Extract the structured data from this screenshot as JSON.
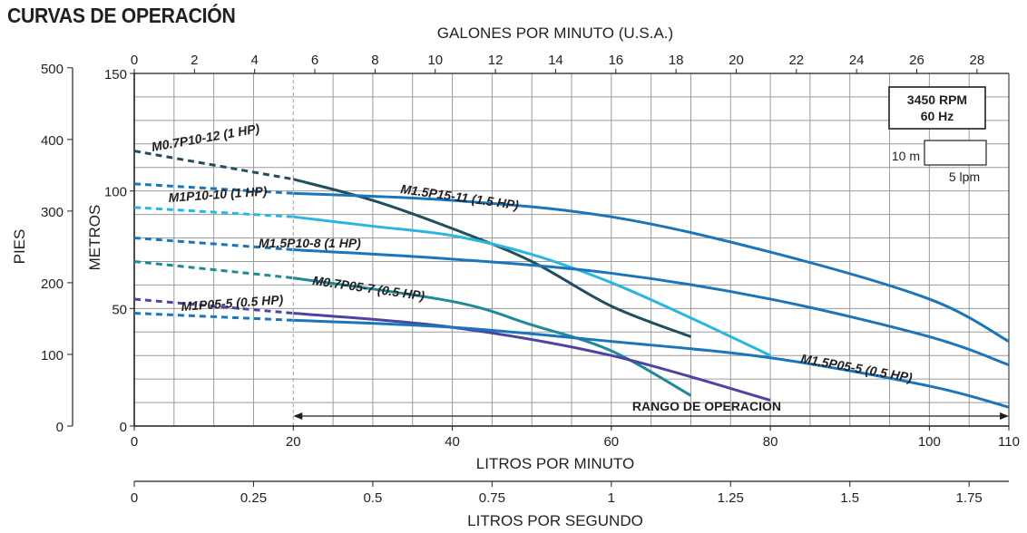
{
  "page": {
    "title": "CURVAS DE OPERACIÓN"
  },
  "colors": {
    "grid": "#9a9a9a",
    "axis": "#231f20",
    "M0.7P10-12": "#1f4e5f",
    "M1P10-10": "#29b6e0",
    "M1.5P15-11": "#1b75bb",
    "M1.5P10-8": "#1b75bb",
    "M0.7P05-7": "#1c8a99",
    "M1P05-5": "#4a45a3",
    "M1.5P05-5": "#1b75bb"
  },
  "chart_data": {
    "type": "line",
    "title": "CURVAS DE OPERACIÓN",
    "grid": true,
    "x": {
      "label": "LITROS POR MINUTO",
      "range": [
        0,
        110
      ],
      "ticks": [
        0,
        20,
        40,
        60,
        80,
        100,
        110
      ]
    },
    "y": {
      "label": "METROS",
      "range": [
        0,
        150
      ],
      "ticks": [
        0,
        50,
        100,
        150
      ],
      "tick_labels": [
        "0",
        "50",
        "100",
        "150"
      ]
    },
    "x_secondary_top": {
      "label": "GALONES POR MINUTO (U.S.A.)",
      "ticks": [
        0,
        2,
        4,
        6,
        8,
        10,
        12,
        14,
        16,
        18,
        20,
        22,
        24,
        26,
        28
      ]
    },
    "x_secondary_bottom": {
      "label": "LITROS POR SEGUNDO",
      "ticks": [
        0,
        0.25,
        0.5,
        0.75,
        1,
        1.25,
        1.5,
        1.75
      ],
      "tick_labels": [
        "0",
        "0.25",
        "0.5",
        "0.75",
        "1",
        "1.25",
        "1.5",
        "1.75"
      ]
    },
    "y_secondary_left": {
      "label": "PIES",
      "ticks": [
        0,
        100,
        200,
        300,
        400,
        500
      ],
      "tick_labels": [
        "0",
        "100",
        "200",
        "300",
        "400",
        "500"
      ]
    },
    "info_box": {
      "line1": "3450 RPM",
      "line2": "60 Hz"
    },
    "scale_legend": {
      "height_label": "10 m",
      "width_label": "5 lpm"
    },
    "operating_range": {
      "label": "RANGO DE OPERACION",
      "from": 20,
      "to": 110
    },
    "series": [
      {
        "name": "M0.7P10-12 (1 HP)",
        "key": "M0.7P10-12",
        "dashed": [
          [
            0,
            117
          ],
          [
            20,
            105
          ]
        ],
        "points": [
          [
            20,
            105
          ],
          [
            30,
            96
          ],
          [
            40,
            84
          ],
          [
            50,
            70
          ],
          [
            60,
            51
          ],
          [
            70,
            38
          ]
        ]
      },
      {
        "name": "M1P10-10 (1 HP)",
        "key": "M1P10-10",
        "dashed": [
          [
            0,
            93
          ],
          [
            20,
            89
          ]
        ],
        "points": [
          [
            20,
            89
          ],
          [
            30,
            85
          ],
          [
            40,
            81
          ],
          [
            50,
            73
          ],
          [
            60,
            61
          ],
          [
            70,
            46
          ],
          [
            80,
            30
          ]
        ]
      },
      {
        "name": "M1.5P15-11 (1.5 HP)",
        "key": "M1.5P15-11",
        "dashed": [
          [
            0,
            103
          ],
          [
            20,
            99
          ]
        ],
        "points": [
          [
            20,
            99
          ],
          [
            40,
            96
          ],
          [
            60,
            89
          ],
          [
            80,
            74
          ],
          [
            100,
            54
          ],
          [
            110,
            36
          ]
        ]
      },
      {
        "name": "M1.5P10-8 (1 HP)",
        "key": "M1.5P10-8",
        "dashed": [
          [
            0,
            80
          ],
          [
            20,
            75
          ]
        ],
        "points": [
          [
            20,
            75
          ],
          [
            40,
            71
          ],
          [
            60,
            65
          ],
          [
            80,
            54
          ],
          [
            100,
            38
          ],
          [
            110,
            26
          ]
        ]
      },
      {
        "name": "M0.7P05-7 (0.5 HP)",
        "key": "M0.7P05-7",
        "dashed": [
          [
            0,
            70
          ],
          [
            20,
            63
          ]
        ],
        "points": [
          [
            20,
            63
          ],
          [
            40,
            53
          ],
          [
            50,
            43
          ],
          [
            60,
            32
          ],
          [
            70,
            13
          ]
        ]
      },
      {
        "name": "M1P05-5 (0.5 HP)",
        "key": "M1P05-5",
        "dashed": [
          [
            0,
            54
          ],
          [
            20,
            48
          ]
        ],
        "points": [
          [
            20,
            48
          ],
          [
            40,
            42
          ],
          [
            60,
            30
          ],
          [
            80,
            11
          ]
        ]
      },
      {
        "name": "M1.5P05-5 (0.5 HP)",
        "key": "M1.5P05-5",
        "dashed": [
          [
            0,
            48
          ],
          [
            20,
            45
          ]
        ],
        "points": [
          [
            20,
            45
          ],
          [
            40,
            42
          ],
          [
            60,
            36
          ],
          [
            80,
            29
          ],
          [
            100,
            17
          ],
          [
            110,
            8
          ]
        ]
      }
    ]
  }
}
